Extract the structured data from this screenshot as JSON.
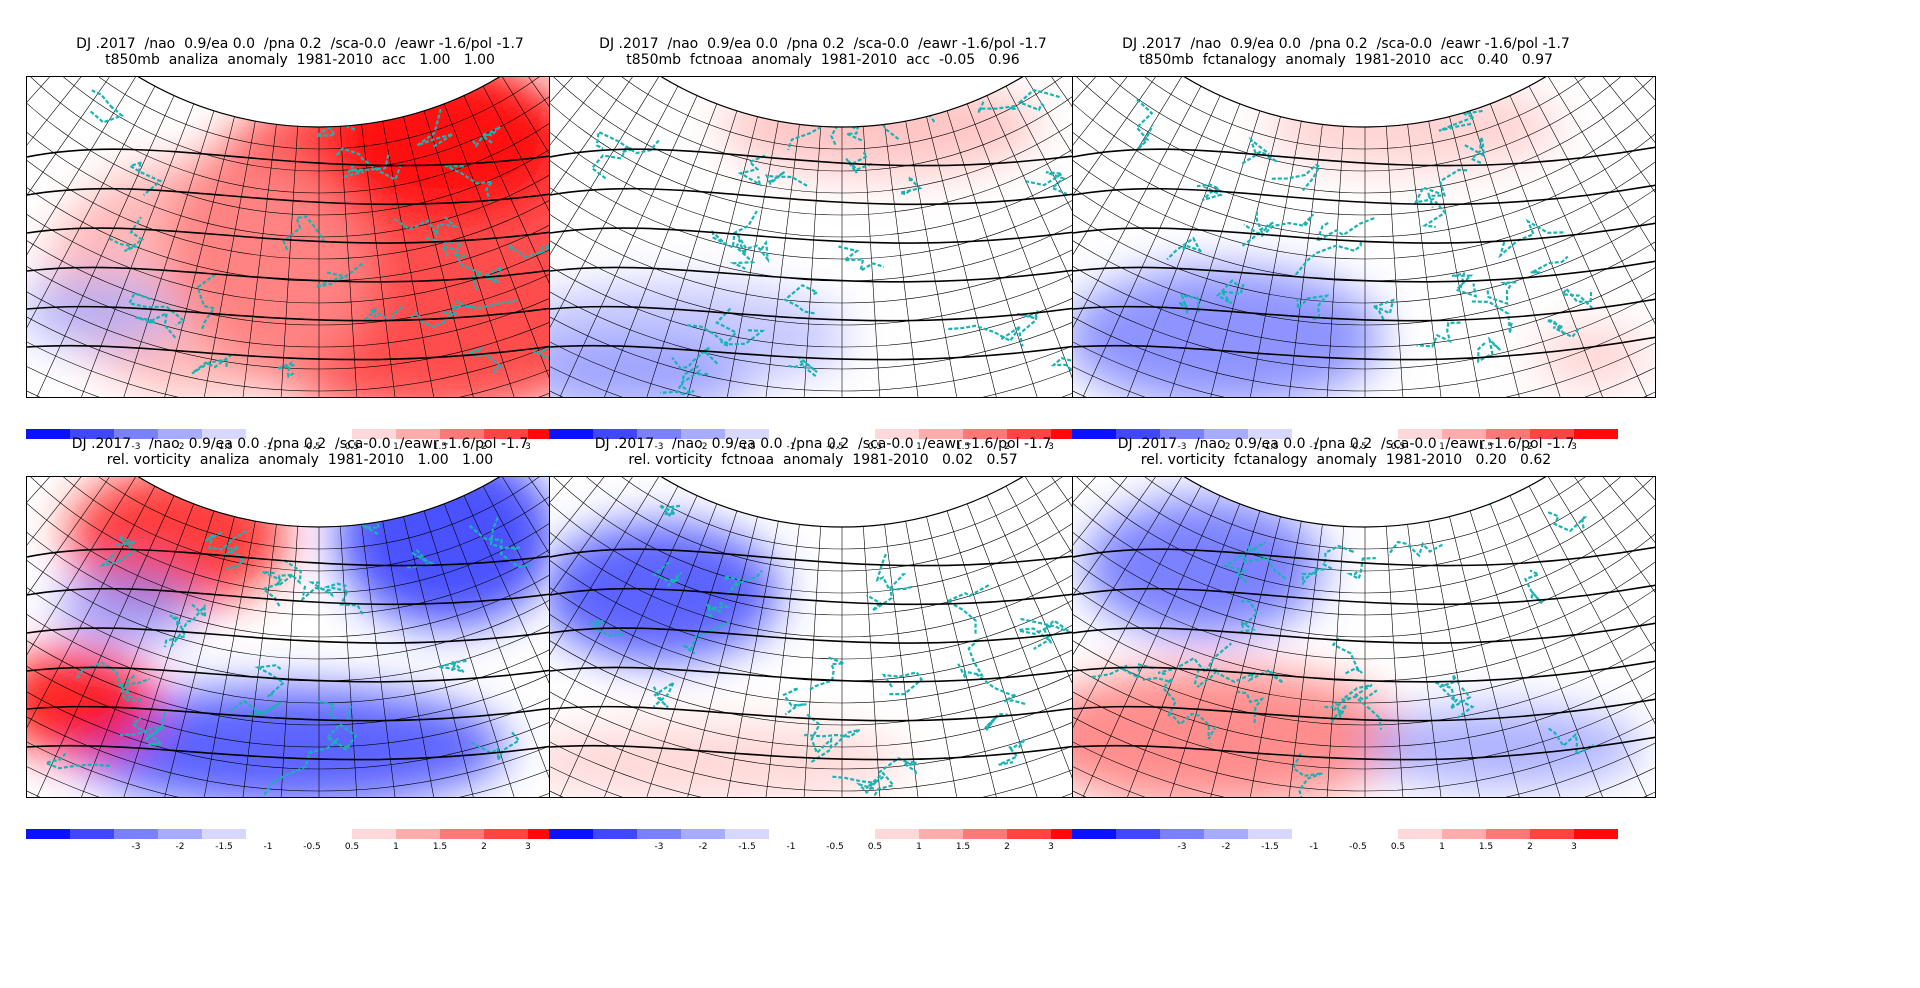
{
  "colorbar": {
    "labels": [
      "-3",
      "-2",
      "-1.5",
      "-1",
      "-0.5",
      "0.5",
      "1",
      "1.5",
      "2",
      "3"
    ],
    "neg_colors": [
      "#0a12ff",
      "#3f48ff",
      "#7a80ff",
      "#a8acff",
      "#d6d8ff"
    ],
    "pos_colors": [
      "#ffd9d9",
      "#ffacac",
      "#ff7878",
      "#ff4444",
      "#ff0a0a"
    ]
  },
  "panels": [
    {
      "id": "p1",
      "title1": "DJ .2017  /nao  0.9/ea 0.0  /pna 0.2  /sca-0.0  /eawr -1.6/pol -1.7",
      "title2": "t850mb  analiza  anomaly  1981-2010  acc   1.00   1.00",
      "variable": "t850mb",
      "source": "analiza",
      "fill": "warm-dominant"
    },
    {
      "id": "p2",
      "title1": "DJ .2017  /nao  0.9/ea 0.0  /pna 0.2  /sca-0.0  /eawr -1.6/pol -1.7",
      "title2": "t850mb  fctnoaa  anomaly  1981-2010  acc  -0.05   0.96",
      "variable": "t850mb",
      "source": "fctnoaa",
      "fill": "weak"
    },
    {
      "id": "p3",
      "title1": "DJ .2017  /nao  0.9/ea 0.0  /pna 0.2  /sca-0.0  /eawr -1.6/pol -1.7",
      "title2": "t850mb  fctanalogy  anomaly  1981-2010  acc   0.40   0.97",
      "variable": "t850mb",
      "source": "fctanalogy",
      "fill": "weak-cold-sw"
    },
    {
      "id": "p4",
      "title1": "DJ .2017    /nao  0.9/ea 0.0  /pna 0.2  /sca-0.0  /eawr -1.6/pol -1.7",
      "title2": "rel. vorticity  analiza  anomaly  1981-2010   1.00   1.00",
      "variable": "rel. vorticity",
      "source": "analiza",
      "fill": "dipole-strong"
    },
    {
      "id": "p5",
      "title1": "DJ .2017    /nao  0.9/ea 0.0  /pna 0.2  /sca-0.0  /eawr -1.6/pol -1.7",
      "title2": "rel. vorticity  fctnoaa  anomaly  1981-2010   0.02   0.57",
      "variable": "rel. vorticity",
      "source": "fctnoaa",
      "fill": "blue-nw"
    },
    {
      "id": "p6",
      "title1": "DJ .2017    /nao  0.9/ea 0.0  /pna 0.2  /sca-0.0  /eawr -1.6/pol -1.7",
      "title2": "rel. vorticity  fctanalogy  anomaly  1981-2010   0.20   0.62",
      "variable": "rel. vorticity",
      "source": "fctanalogy",
      "fill": "blue-nw-red-sw"
    }
  ]
}
